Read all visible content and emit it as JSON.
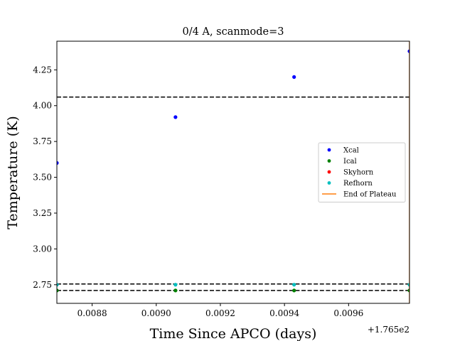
{
  "chart_data": {
    "type": "scatter",
    "title": "0/4 A, scanmode=3",
    "xlabel": "Time Since APCO (days)",
    "ylabel": "Temperature (K)",
    "x_offset_text": "+1.765e2",
    "xlim": [
      176.50869,
      176.50979
    ],
    "ylim": [
      2.62,
      4.45
    ],
    "x_ticks": [
      176.5088,
      176.509,
      176.5092,
      176.5094,
      176.5096
    ],
    "x_tick_labels": [
      "0.0088",
      "0.0090",
      "0.0092",
      "0.0094",
      "0.0096"
    ],
    "y_ticks": [
      2.75,
      3.0,
      3.25,
      3.5,
      3.75,
      4.0,
      4.25
    ],
    "y_tick_labels": [
      "2.75",
      "3.00",
      "3.25",
      "3.50",
      "3.75",
      "4.00",
      "4.25"
    ],
    "series": [
      {
        "name": "Xcal",
        "color": "#0000ff",
        "marker": "dot",
        "x": [
          176.50869,
          176.50906,
          176.50943,
          176.50979
        ],
        "y": [
          3.6,
          3.92,
          4.2,
          4.38
        ]
      },
      {
        "name": "Ical",
        "color": "#008000",
        "marker": "dot",
        "x": [
          176.50869,
          176.50906,
          176.50943,
          176.50979
        ],
        "y": [
          2.71,
          2.71,
          2.71,
          2.71
        ]
      },
      {
        "name": "Skyhorn",
        "color": "#ff0000",
        "marker": "dot",
        "x": [],
        "y": []
      },
      {
        "name": "Refhorn",
        "color": "#00bfbf",
        "marker": "dot",
        "x": [
          176.50869,
          176.50906,
          176.50943,
          176.50979
        ],
        "y": [
          2.75,
          2.75,
          2.75,
          2.75
        ]
      },
      {
        "name": "End of Plateau",
        "color": "#ff7f0e",
        "marker": "line",
        "x": [
          176.50979,
          176.50979
        ],
        "y": [
          2.62,
          4.45
        ]
      }
    ],
    "hlines": [
      {
        "y": 4.06,
        "color": "#000000",
        "style": "dashed"
      },
      {
        "y": 2.755,
        "color": "#000000",
        "style": "dashed"
      },
      {
        "y": 2.71,
        "color": "#000000",
        "style": "dashed"
      }
    ],
    "legend_location": "center-right",
    "grid": false
  }
}
